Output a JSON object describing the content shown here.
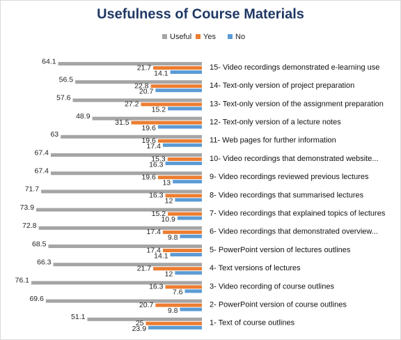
{
  "chart_data": {
    "type": "bar",
    "orientation": "horizontal",
    "title": "Usefulness of Course Materials",
    "categories": [
      "15- Video recordings demonstrated e-learning use",
      "14- Text-only version of project preparation",
      "13- Text-only version of the assignment preparation",
      "12- Text-only version of a lecture notes",
      "11- Web pages for further information",
      "10- Video recordings that demonstrated website...",
      "9- Video recordings reviewed previous lectures",
      "8- Video recordings that summarised lectures",
      "7- Video recordings that explained topics of  lectures",
      "6- Video recordings that demonstrated overview...",
      "5- PowerPoint version of lectures outlines",
      "4- Text versions of lectures",
      "3- Video recording of course outlines",
      "2- PowerPoint version of course outlines",
      "1- Text of course outlines"
    ],
    "series": [
      {
        "name": "Useful",
        "color": "#a5a5a5",
        "values": [
          64.1,
          56.5,
          57.6,
          48.9,
          63,
          67.4,
          67.4,
          71.7,
          73.9,
          72.8,
          68.5,
          66.3,
          76.1,
          69.6,
          51.1
        ]
      },
      {
        "name": "Yes",
        "color": "#ed7d31",
        "values": [
          21.7,
          22.8,
          27.2,
          31.5,
          19.6,
          15.3,
          19.6,
          16.3,
          15.2,
          17.4,
          17.4,
          21.7,
          16.3,
          20.7,
          25
        ]
      },
      {
        "name": "No",
        "color": "#5b9bd5",
        "values": [
          14.1,
          20.7,
          15.2,
          19.6,
          17.4,
          16.3,
          13,
          12,
          10.9,
          9.8,
          14.1,
          12,
          7.6,
          9.8,
          23.9
        ]
      }
    ],
    "xlim": [
      0,
      80
    ]
  }
}
